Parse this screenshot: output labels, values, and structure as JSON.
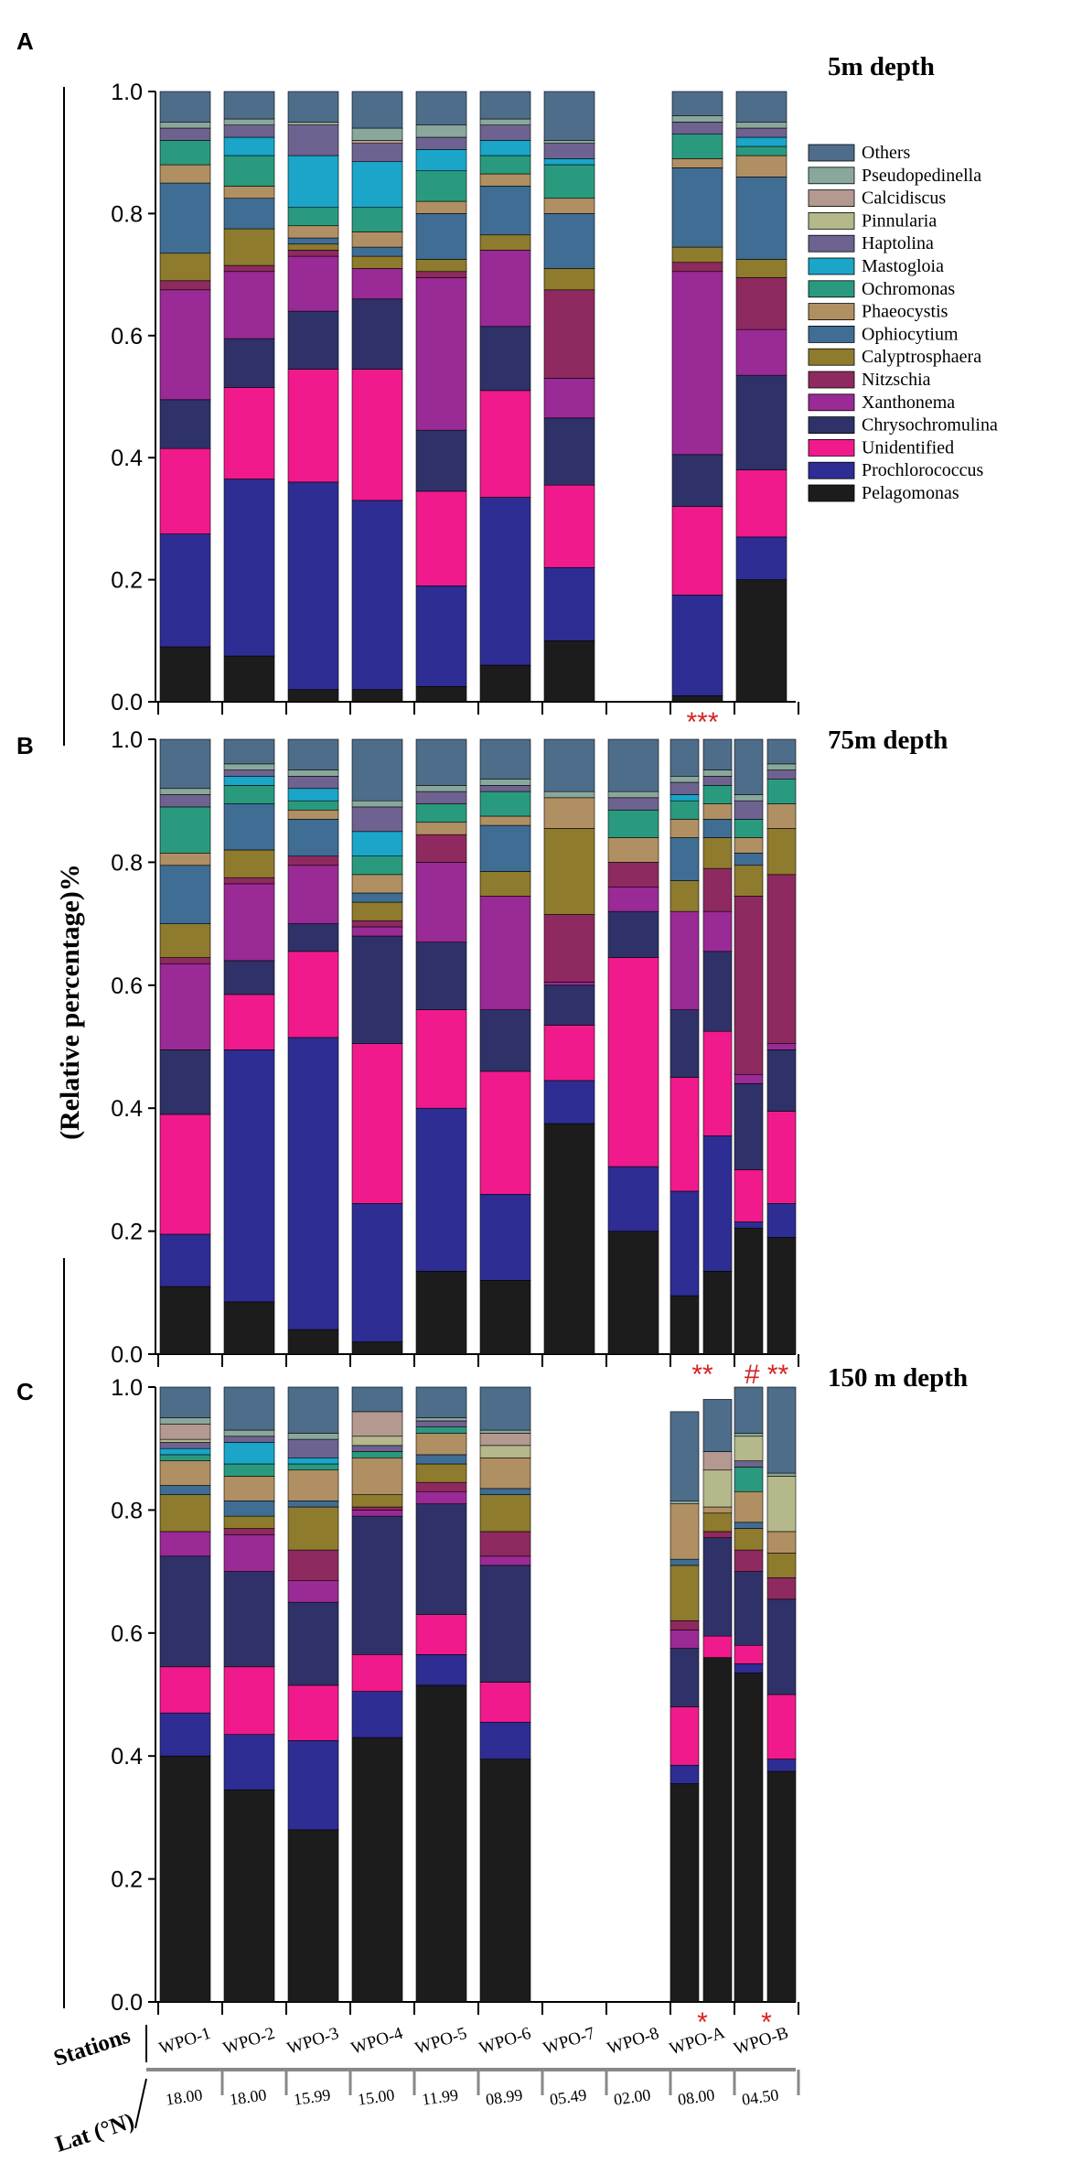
{
  "chart_data": {
    "type": "bar",
    "subtype": "stacked-100",
    "ylabel": "(Relative percentage)%",
    "ylim": [
      0,
      1
    ],
    "y_ticks": [
      "0.0",
      "0.2",
      "0.4",
      "0.6",
      "0.8",
      "1.0"
    ],
    "legend": {
      "placement": "right",
      "entries": [
        "Others",
        "Pseudopedinella",
        "Calcidiscus",
        "Pinnularia",
        "Haptolina",
        "Mastogloia",
        "Ochromonas",
        "Phaeocystis",
        "Ophiocytium",
        "Calyptrosphaera",
        "Nitzschia",
        "Xanthonema",
        "Chrysochromulina",
        "Unidentified",
        "Prochlorococcus",
        "Pelagomonas"
      ]
    },
    "taxa_stack_order": [
      "Pelagomonas",
      "Prochlorococcus",
      "Unidentified",
      "Chrysochromulina",
      "Xanthonema",
      "Nitzschia",
      "Calyptrosphaera",
      "Ophiocytium",
      "Phaeocystis",
      "Ochromonas",
      "Mastogloia",
      "Haptolina",
      "Pinnularia",
      "Calcidiscus",
      "Pseudopedinella",
      "Others"
    ],
    "colors": {
      "Others": "#4e6d8a",
      "Pseudopedinella": "#8aa79c",
      "Calcidiscus": "#b3998f",
      "Pinnularia": "#b4b88a",
      "Haptolina": "#6e6290",
      "Mastogloia": "#1aa5c9",
      "Ochromonas": "#2a9a7e",
      "Phaeocystis": "#b08f62",
      "Ophiocytium": "#3f6d94",
      "Calyptrosphaera": "#8e7b2d",
      "Nitzschia": "#8e2a5f",
      "Xanthonema": "#9a2a96",
      "Chrysochromulina": "#2e3268",
      "Unidentified": "#f01a8c",
      "Prochlorococcus": "#2e2d94",
      "Pelagomonas": "#1c1c1c"
    },
    "stations": [
      "WPO-1",
      "WPO-2",
      "WPO-3",
      "WPO-4",
      "WPO-5",
      "WPO-6",
      "WPO-7",
      "WPO-8",
      "WPO-A",
      "WPO-B"
    ],
    "latitudes": [
      "18.00",
      "18.00",
      "15.99",
      "15.00",
      "11.99",
      "08.99",
      "05.49",
      "02.00",
      "08.00",
      "04.50"
    ],
    "row_titles": {
      "stations": "Stations",
      "lat": "Lat (°N)"
    },
    "panels": [
      {
        "letter": "A",
        "title": "5m depth",
        "markers": [
          {
            "station": "WPO-A",
            "text": "***"
          }
        ],
        "bars": [
          {
            "station": "WPO-1",
            "values": [
              0.09,
              0.185,
              0.14,
              0.08,
              0.18,
              0.015,
              0.045,
              0.115,
              0.03,
              0.04,
              0.0,
              0.02,
              0.0,
              0.0,
              0.01,
              0.05
            ]
          },
          {
            "station": "WPO-2",
            "values": [
              0.075,
              0.29,
              0.15,
              0.08,
              0.11,
              0.01,
              0.06,
              0.05,
              0.02,
              0.05,
              0.03,
              0.02,
              0.0,
              0.0,
              0.01,
              0.045
            ]
          },
          {
            "station": "WPO-3",
            "values": [
              0.02,
              0.34,
              0.185,
              0.095,
              0.09,
              0.01,
              0.01,
              0.01,
              0.02,
              0.03,
              0.085,
              0.05,
              0.0,
              0.0,
              0.005,
              0.05
            ]
          },
          {
            "station": "WPO-4",
            "values": [
              0.02,
              0.31,
              0.215,
              0.115,
              0.05,
              0.0,
              0.02,
              0.015,
              0.025,
              0.04,
              0.075,
              0.03,
              0.0,
              0.005,
              0.02,
              0.06
            ]
          },
          {
            "station": "WPO-5",
            "values": [
              0.025,
              0.165,
              0.155,
              0.1,
              0.25,
              0.01,
              0.02,
              0.075,
              0.02,
              0.05,
              0.035,
              0.02,
              0.0,
              0.0,
              0.02,
              0.055
            ]
          },
          {
            "station": "WPO-6",
            "values": [
              0.06,
              0.275,
              0.175,
              0.105,
              0.125,
              0.0,
              0.025,
              0.08,
              0.02,
              0.03,
              0.025,
              0.025,
              0.0,
              0.0,
              0.01,
              0.045
            ]
          },
          {
            "station": "WPO-7",
            "values": [
              0.1,
              0.12,
              0.135,
              0.11,
              0.065,
              0.145,
              0.035,
              0.09,
              0.025,
              0.055,
              0.01,
              0.025,
              0.0,
              0.0,
              0.005,
              0.08
            ]
          },
          {
            "station": "WPO-8",
            "values": null
          },
          {
            "station": "WPO-A",
            "values": [
              0.01,
              0.165,
              0.145,
              0.085,
              0.3,
              0.015,
              0.025,
              0.13,
              0.015,
              0.04,
              0.0,
              0.02,
              0.0,
              0.0,
              0.01,
              0.04
            ]
          },
          {
            "station": "WPO-B",
            "values": [
              0.2,
              0.07,
              0.11,
              0.155,
              0.075,
              0.085,
              0.03,
              0.135,
              0.035,
              0.015,
              0.015,
              0.015,
              0.0,
              0.0,
              0.01,
              0.05
            ]
          }
        ]
      },
      {
        "letter": "B",
        "title": "75m depth",
        "markers": [
          {
            "station": "WPO-A",
            "text": "**"
          },
          {
            "station": "WPO-B",
            "text": "# **"
          }
        ],
        "bars": [
          {
            "station": "WPO-1",
            "values": [
              0.11,
              0.085,
              0.195,
              0.105,
              0.14,
              0.01,
              0.055,
              0.095,
              0.02,
              0.075,
              0.0,
              0.02,
              0.0,
              0.0,
              0.01,
              0.08
            ]
          },
          {
            "station": "WPO-2",
            "values": [
              0.085,
              0.41,
              0.09,
              0.055,
              0.125,
              0.01,
              0.045,
              0.075,
              0.0,
              0.03,
              0.015,
              0.01,
              0.0,
              0.0,
              0.01,
              0.04
            ]
          },
          {
            "station": "WPO-3",
            "values": [
              0.04,
              0.475,
              0.14,
              0.045,
              0.095,
              0.015,
              0.0,
              0.06,
              0.015,
              0.015,
              0.02,
              0.02,
              0.0,
              0.0,
              0.01,
              0.05
            ]
          },
          {
            "station": "WPO-4",
            "values": [
              0.02,
              0.225,
              0.26,
              0.175,
              0.015,
              0.01,
              0.03,
              0.015,
              0.03,
              0.03,
              0.04,
              0.04,
              0.0,
              0.0,
              0.01,
              0.1
            ]
          },
          {
            "station": "WPO-5",
            "values": [
              0.135,
              0.265,
              0.16,
              0.11,
              0.13,
              0.045,
              0.0,
              0.0,
              0.02,
              0.03,
              0.0,
              0.02,
              0.0,
              0.0,
              0.01,
              0.075
            ]
          },
          {
            "station": "WPO-6",
            "values": [
              0.12,
              0.14,
              0.2,
              0.1,
              0.185,
              0.0,
              0.04,
              0.075,
              0.015,
              0.04,
              0.0,
              0.01,
              0.0,
              0.0,
              0.01,
              0.065
            ]
          },
          {
            "station": "WPO-7",
            "values": [
              0.375,
              0.07,
              0.09,
              0.065,
              0.005,
              0.11,
              0.14,
              0.0,
              0.05,
              0.0,
              0.0,
              0.0,
              0.0,
              0.0,
              0.01,
              0.085
            ]
          },
          {
            "station": "WPO-8",
            "values": [
              0.2,
              0.105,
              0.34,
              0.075,
              0.04,
              0.04,
              0.0,
              0.0,
              0.04,
              0.045,
              0.0,
              0.02,
              0.0,
              0.0,
              0.01,
              0.085
            ]
          },
          {
            "station": "WPO-A",
            "values": [
              0.095,
              0.17,
              0.185,
              0.11,
              0.16,
              0.0,
              0.05,
              0.07,
              0.03,
              0.03,
              0.01,
              0.02,
              0.0,
              0.0,
              0.01,
              0.06
            ]
          },
          {
            "station": "WPO-A",
            "values": [
              0.135,
              0.22,
              0.17,
              0.13,
              0.065,
              0.07,
              0.05,
              0.03,
              0.025,
              0.03,
              0.0,
              0.015,
              0.0,
              0.0,
              0.01,
              0.05
            ]
          },
          {
            "station": "WPO-B",
            "values": [
              0.205,
              0.01,
              0.085,
              0.14,
              0.015,
              0.29,
              0.05,
              0.02,
              0.025,
              0.03,
              0.0,
              0.03,
              0.0,
              0.0,
              0.01,
              0.09
            ]
          },
          {
            "station": "WPO-B",
            "values": [
              0.19,
              0.055,
              0.15,
              0.1,
              0.01,
              0.275,
              0.075,
              0.0,
              0.04,
              0.04,
              0.0,
              0.015,
              0.0,
              0.0,
              0.01,
              0.04
            ]
          }
        ]
      },
      {
        "letter": "C",
        "title": "150 m depth",
        "markers": [
          {
            "station": "WPO-A",
            "text": "*"
          },
          {
            "station": "WPO-B",
            "text": "*"
          }
        ],
        "bars": [
          {
            "station": "WPO-1",
            "values": [
              0.4,
              0.07,
              0.075,
              0.18,
              0.04,
              0.0,
              0.06,
              0.015,
              0.04,
              0.01,
              0.01,
              0.01,
              0.005,
              0.025,
              0.01,
              0.05
            ]
          },
          {
            "station": "WPO-2",
            "values": [
              0.345,
              0.09,
              0.11,
              0.155,
              0.06,
              0.01,
              0.02,
              0.025,
              0.04,
              0.02,
              0.035,
              0.01,
              0.0,
              0.0,
              0.01,
              0.07
            ]
          },
          {
            "station": "WPO-3",
            "values": [
              0.28,
              0.145,
              0.09,
              0.135,
              0.035,
              0.05,
              0.07,
              0.01,
              0.05,
              0.01,
              0.01,
              0.03,
              0.0,
              0.0,
              0.01,
              0.075
            ]
          },
          {
            "station": "WPO-4",
            "values": [
              0.43,
              0.075,
              0.06,
              0.225,
              0.01,
              0.005,
              0.02,
              0.0,
              0.06,
              0.01,
              0.0,
              0.01,
              0.015,
              0.04,
              0.0,
              0.04
            ]
          },
          {
            "station": "WPO-5",
            "values": [
              0.515,
              0.05,
              0.065,
              0.18,
              0.02,
              0.015,
              0.03,
              0.015,
              0.035,
              0.01,
              0.0,
              0.01,
              0.0,
              0.0,
              0.005,
              0.05
            ]
          },
          {
            "station": "WPO-6",
            "values": [
              0.395,
              0.06,
              0.065,
              0.19,
              0.015,
              0.04,
              0.06,
              0.01,
              0.05,
              0.0,
              0.0,
              0.0,
              0.02,
              0.02,
              0.005,
              0.07
            ]
          },
          {
            "station": "WPO-7",
            "values": null
          },
          {
            "station": "WPO-8",
            "values": null
          },
          {
            "station": "WPO-A",
            "values": [
              0.355,
              0.03,
              0.095,
              0.095,
              0.03,
              0.015,
              0.09,
              0.01,
              0.09,
              0.0,
              0.0,
              0.0,
              0.0,
              0.0,
              0.005,
              0.145
            ]
          },
          {
            "station": "WPO-A",
            "values": [
              0.56,
              0.0,
              0.035,
              0.16,
              0.0,
              0.01,
              0.03,
              0.0,
              0.01,
              0.0,
              0.0,
              0.0,
              0.06,
              0.03,
              0.0,
              0.085
            ]
          },
          {
            "station": "WPO-B",
            "values": [
              0.535,
              0.015,
              0.03,
              0.12,
              0.0,
              0.035,
              0.035,
              0.01,
              0.05,
              0.04,
              0.0,
              0.01,
              0.04,
              0.0,
              0.005,
              0.075
            ]
          },
          {
            "station": "WPO-B",
            "values": [
              0.375,
              0.02,
              0.105,
              0.155,
              0.0,
              0.035,
              0.04,
              0.0,
              0.035,
              0.0,
              0.0,
              0.0,
              0.09,
              0.0,
              0.005,
              0.14
            ]
          }
        ]
      }
    ]
  }
}
